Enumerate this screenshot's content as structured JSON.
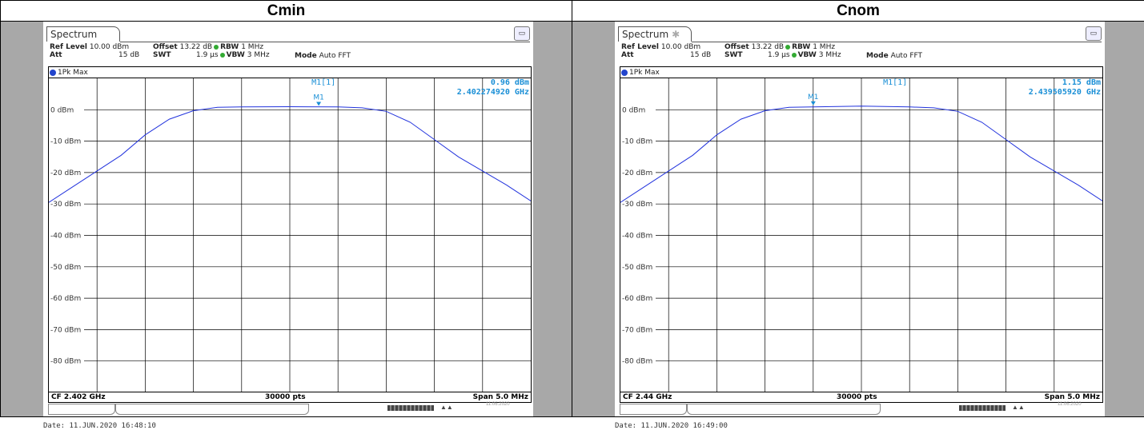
{
  "panels": [
    {
      "id": "left",
      "header": "Cmin",
      "tab_label": "Spectrum",
      "show_star": false,
      "params": {
        "ref_level_label": "Ref Level",
        "ref_level_value": "10.00 dBm",
        "offset_label": "Offset",
        "offset_value": "13.22 dB",
        "rbw_label": "RBW",
        "rbw_value": "1 MHz",
        "att_label": "Att",
        "att_value": "15 dB",
        "swt_label": "SWT",
        "swt_value": "1.9 µs",
        "vbw_label": "VBW",
        "vbw_value": "3 MHz",
        "mode_label": "Mode",
        "mode_value": "Auto FFT"
      },
      "trace_label": "1Pk Max",
      "marker": {
        "name": "M1",
        "readout_label": "M1[1]",
        "level": "0.96 dBm",
        "frequency": "2.402274920 GHz"
      },
      "footer": {
        "cf": "CF 2.402 GHz",
        "points": "30000 pts",
        "span": "Span 5.0 MHz"
      },
      "status_date": "11.06.2020",
      "date_line": "Date: 11.JUN.2020  16:48:10"
    },
    {
      "id": "right",
      "header": "Cnom",
      "tab_label": "Spectrum",
      "show_star": true,
      "params": {
        "ref_level_label": "Ref Level",
        "ref_level_value": "10.00 dBm",
        "offset_label": "Offset",
        "offset_value": "13.22 dB",
        "rbw_label": "RBW",
        "rbw_value": "1 MHz",
        "att_label": "Att",
        "att_value": "15 dB",
        "swt_label": "SWT",
        "swt_value": "1.9 µs",
        "vbw_label": "VBW",
        "vbw_value": "3 MHz",
        "mode_label": "Mode",
        "mode_value": "Auto FFT"
      },
      "trace_label": "1Pk Max",
      "marker": {
        "name": "M1",
        "readout_label": "M1[1]",
        "level": "1.15 dBm",
        "frequency": "2.439505920 GHz"
      },
      "footer": {
        "cf": "CF 2.44 GHz",
        "points": "30000 pts",
        "span": "Span 5.0 MHz"
      },
      "status_date": "11.06.2020",
      "date_line": "Date: 11.JUN.2020  16:49:00"
    }
  ],
  "colors": {
    "trace": "#2233dd",
    "marker": "#1a8fd6",
    "grid": "#000000",
    "panel_bg": "#a8a8a8"
  },
  "chart_data": [
    {
      "type": "line",
      "title": "Cmin",
      "x_unit": "divisions",
      "xlim": [
        0,
        10
      ],
      "ylim": [
        -90,
        10
      ],
      "y_ticks": [
        0,
        -10,
        -20,
        -30,
        -40,
        -50,
        -60,
        -70,
        -80
      ],
      "y_tick_labels": [
        "0 dBm",
        "-10 dBm",
        "-20 dBm",
        "-30 dBm",
        "-40 dBm",
        "-50 dBm",
        "-60 dBm",
        "-70 dBm",
        "-80 dBm"
      ],
      "grid": true,
      "series": [
        {
          "x": [
            0,
            0.5,
            1.0,
            1.5,
            2.0,
            2.5,
            3.0,
            3.5,
            4.0,
            5.0,
            6.0,
            6.5,
            7.0,
            7.5,
            8.0,
            8.5,
            9.0,
            9.5,
            10.0
          ],
          "y": [
            -29.5,
            -24.5,
            -19.5,
            -14.5,
            -8,
            -3,
            -0.3,
            0.8,
            0.9,
            0.96,
            0.9,
            0.6,
            -0.5,
            -4,
            -9.5,
            -15,
            -19.5,
            -24,
            -29
          ]
        }
      ],
      "marker": {
        "name": "M1",
        "x": 5.6,
        "y": 0.96
      }
    },
    {
      "type": "line",
      "title": "Cnom",
      "x_unit": "divisions",
      "xlim": [
        0,
        10
      ],
      "ylim": [
        -90,
        10
      ],
      "y_ticks": [
        0,
        -10,
        -20,
        -30,
        -40,
        -50,
        -60,
        -70,
        -80
      ],
      "y_tick_labels": [
        "0 dBm",
        "-10 dBm",
        "-20 dBm",
        "-30 dBm",
        "-40 dBm",
        "-50 dBm",
        "-60 dBm",
        "-70 dBm",
        "-80 dBm"
      ],
      "grid": true,
      "series": [
        {
          "x": [
            0,
            0.5,
            1.0,
            1.5,
            2.0,
            2.5,
            3.0,
            3.5,
            4.0,
            5.0,
            6.0,
            6.5,
            7.0,
            7.5,
            8.0,
            8.5,
            9.0,
            9.5,
            10.0
          ],
          "y": [
            -29.5,
            -24.5,
            -19.5,
            -14.5,
            -8,
            -3,
            -0.3,
            0.8,
            0.9,
            1.15,
            0.9,
            0.6,
            -0.5,
            -4,
            -9.5,
            -15,
            -19.5,
            -24,
            -29
          ]
        }
      ],
      "marker": {
        "name": "M1",
        "x": 4.0,
        "y": 1.15
      }
    }
  ]
}
